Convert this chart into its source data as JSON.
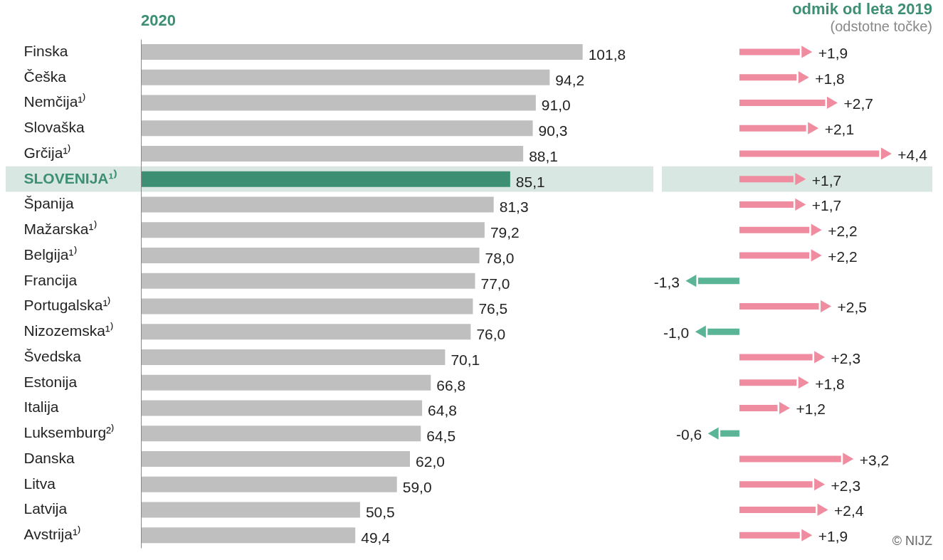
{
  "chart_data": [
    {
      "type": "bar",
      "orientation": "horizontal",
      "title": "2020",
      "tick_labels": "y",
      "categories": [
        "Finska",
        "Češka",
        "Nemčija¹⁾",
        "Slovaška",
        "Grčija¹⁾",
        "SLOVENIJA¹⁾",
        "Španija",
        "Mažarska¹⁾",
        "Belgija¹⁾",
        "Francija",
        "Portugalska¹⁾",
        "Nizozemska¹⁾",
        "Švedska",
        "Estonija",
        "Italija",
        "Luksemburg²⁾",
        "Danska",
        "Litva",
        "Latvija",
        "Avstrija¹⁾"
      ],
      "values": [
        101.8,
        94.2,
        91.0,
        90.3,
        88.1,
        85.1,
        81.3,
        79.2,
        78.0,
        77.0,
        76.5,
        76.0,
        70.1,
        66.8,
        64.8,
        64.5,
        62.0,
        59.0,
        50.5,
        49.4
      ],
      "value_labels": [
        "101,8",
        "94,2",
        "91,0",
        "90,3",
        "88,1",
        "85,1",
        "81,3",
        "79,2",
        "78,0",
        "77,0",
        "76,5",
        "76,0",
        "70,1",
        "66,8",
        "64,8",
        "64,5",
        "62,0",
        "59,0",
        "50,5",
        "49,4"
      ],
      "colors": [
        "#bfbfbf",
        "#bfbfbf",
        "#bfbfbf",
        "#bfbfbf",
        "#bfbfbf",
        "#3d8f73",
        "#bfbfbf",
        "#bfbfbf",
        "#bfbfbf",
        "#bfbfbf",
        "#bfbfbf",
        "#bfbfbf",
        "#bfbfbf",
        "#bfbfbf",
        "#bfbfbf",
        "#bfbfbf",
        "#bfbfbf",
        "#bfbfbf",
        "#bfbfbf",
        "#bfbfbf"
      ],
      "bands": [
        {
          "axis": "y",
          "from": "SLOVENIJA¹⁾",
          "to": "SLOVENIJA¹⁾",
          "color": "#d9e7e3"
        }
      ]
    },
    {
      "type": "bar",
      "orientation": "horizontal",
      "title": "odmik od leta 2019",
      "subtitle": "(odstotne točke)",
      "tick_labels": false,
      "categories": [
        "Finska",
        "Češka",
        "Nemčija¹⁾",
        "Slovaška",
        "Grčija¹⁾",
        "SLOVENIJA¹⁾",
        "Španija",
        "Mažarska¹⁾",
        "Belgija¹⁾",
        "Francija",
        "Portugalska¹⁾",
        "Nizozemska¹⁾",
        "Švedska",
        "Estonija",
        "Italija",
        "Luksemburg²⁾",
        "Danska",
        "Litva",
        "Latvija",
        "Avstrija¹⁾"
      ],
      "values": [
        1.9,
        1.8,
        2.7,
        2.1,
        4.4,
        1.7,
        1.7,
        2.2,
        2.2,
        -1.3,
        2.5,
        -1.0,
        2.3,
        1.8,
        1.2,
        -0.6,
        3.2,
        2.3,
        2.4,
        1.9
      ],
      "value_labels": [
        "+1,9",
        "+1,8",
        "+2,7",
        "+2,1",
        "+4,4",
        "+1,7",
        "+1,7",
        "+2,2",
        "+2,2",
        "-1,3",
        "+2,5",
        "-1,0",
        "+2,3",
        "+1,8",
        "+1,2",
        "-0,6",
        "+3,2",
        "+2,3",
        "+2,4",
        "+1,9"
      ],
      "colors": [
        "#f08ca0",
        "#f08ca0",
        "#f08ca0",
        "#f08ca0",
        "#f08ca0",
        "#f08ca0",
        "#f08ca0",
        "#f08ca0",
        "#f08ca0",
        "#5ab496",
        "#f08ca0",
        "#5ab496",
        "#f08ca0",
        "#f08ca0",
        "#f08ca0",
        "#5ab496",
        "#f08ca0",
        "#f08ca0",
        "#f08ca0",
        "#f08ca0"
      ],
      "bands": [
        {
          "axis": "y",
          "from": "SLOVENIJA¹⁾",
          "to": "SLOVENIJA¹⁾",
          "color": "#d9e7e3"
        }
      ],
      "annotations": [
        "© NIJZ"
      ]
    }
  ]
}
